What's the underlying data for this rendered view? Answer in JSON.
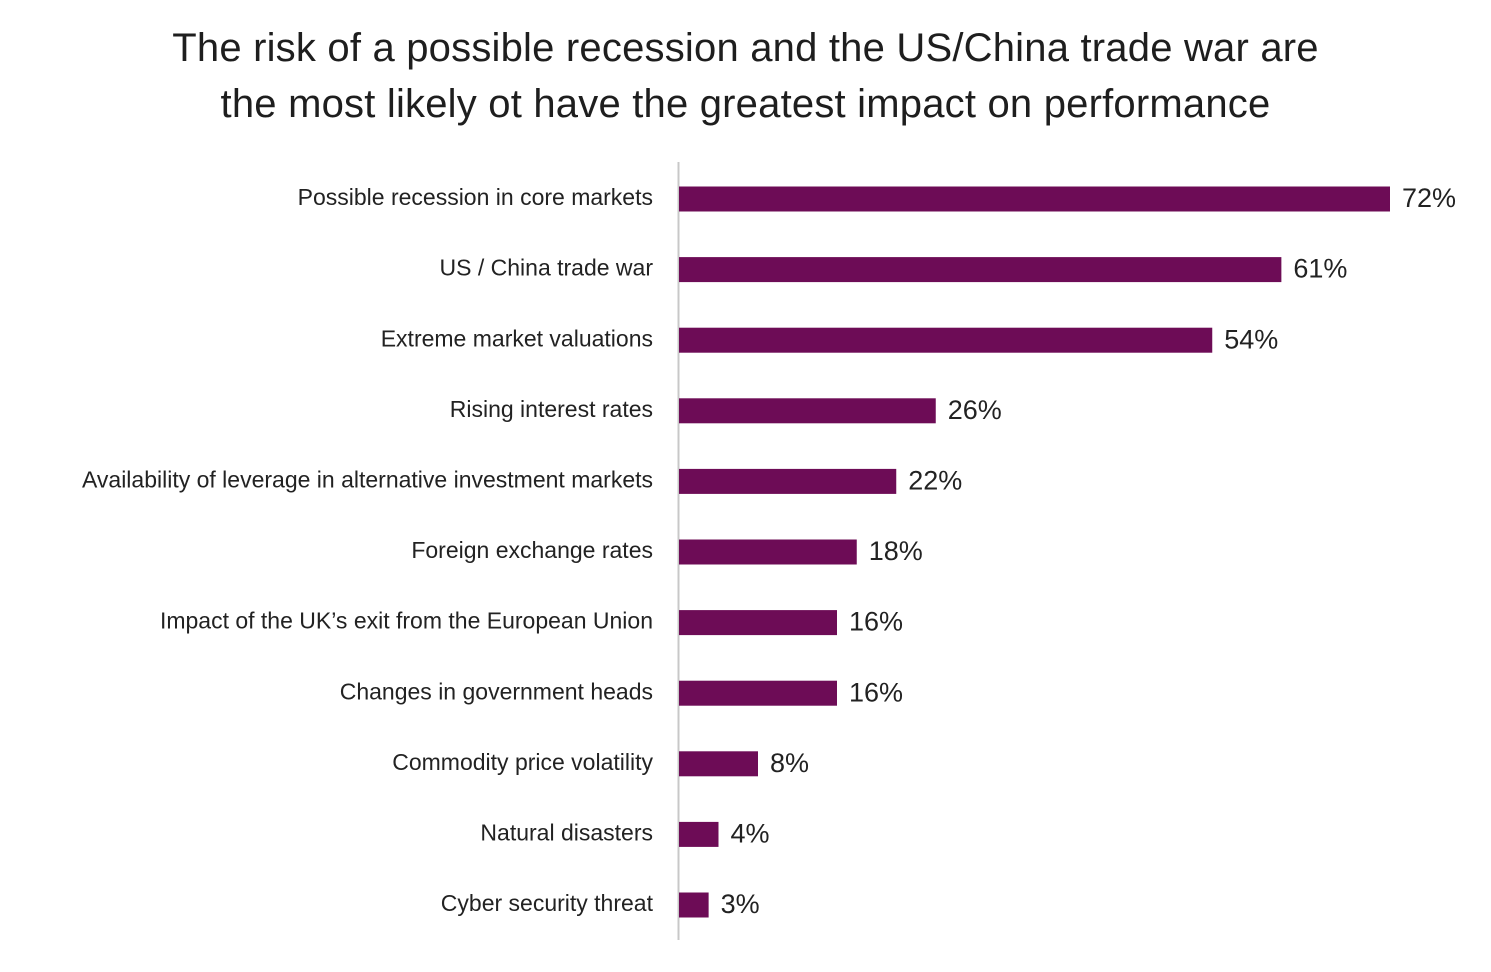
{
  "chart_data": {
    "type": "bar",
    "orientation": "horizontal",
    "title_lines": [
      "The risk of a possible recession and the US/China trade war are",
      "the most likely ot have the greatest impact on performance"
    ],
    "categories": [
      "Possible recession in core markets",
      "US / China trade war",
      "Extreme market valuations",
      "Rising interest rates",
      "Availability of leverage in alternative investment markets",
      "Foreign exchange rates",
      "Impact of the UK’s exit from the European Union",
      "Changes in government heads",
      "Commodity price volatility",
      "Natural disasters",
      "Cyber security threat"
    ],
    "values": [
      72,
      61,
      54,
      26,
      22,
      18,
      16,
      16,
      8,
      4,
      3
    ],
    "value_labels": [
      "72%",
      "61%",
      "54%",
      "26%",
      "22%",
      "18%",
      "16%",
      "16%",
      "8%",
      "4%",
      "3%"
    ],
    "unit": "%",
    "xlim": [
      0,
      72
    ],
    "grid": false,
    "legend": "none",
    "bar_color": "#6d0c56",
    "axis_color": "#c8c8c8"
  }
}
